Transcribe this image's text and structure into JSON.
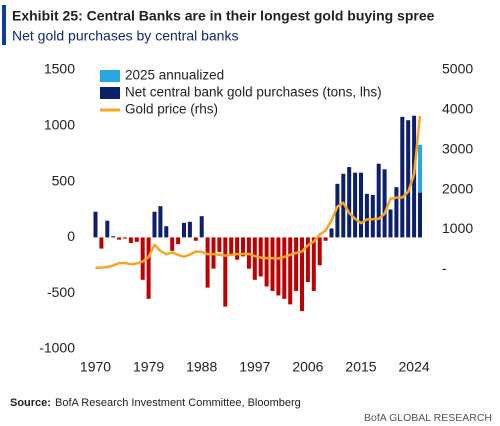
{
  "chart_data": {
    "type": "bar",
    "title": "Exhibit 25: Central Banks are in their longest gold buying spree",
    "subtitle": "Net gold purchases by central banks",
    "source_label": "Source:",
    "source": "BofA Research Investment Committee, Bloomberg",
    "footer": "BofA GLOBAL RESEARCH",
    "x": [
      1970,
      1971,
      1972,
      1973,
      1974,
      1975,
      1976,
      1977,
      1978,
      1979,
      1980,
      1981,
      1982,
      1983,
      1984,
      1985,
      1986,
      1987,
      1988,
      1989,
      1990,
      1991,
      1992,
      1993,
      1994,
      1995,
      1996,
      1997,
      1998,
      1999,
      2000,
      2001,
      2002,
      2003,
      2004,
      2005,
      2006,
      2007,
      2008,
      2009,
      2010,
      2011,
      2012,
      2013,
      2014,
      2015,
      2016,
      2017,
      2018,
      2019,
      2020,
      2021,
      2022,
      2023,
      2024,
      2025
    ],
    "xlim": [
      1969,
      2026
    ],
    "xticks": [
      1970,
      1979,
      1988,
      1997,
      2006,
      2015,
      2024
    ],
    "ylim": [
      -1000,
      1500
    ],
    "yticks": [
      -1000,
      -500,
      0,
      500,
      1000,
      1500
    ],
    "y2lim": [
      -2000,
      5000
    ],
    "y2ticks": [
      {
        "value": 0,
        "label": "-"
      },
      1000,
      2000,
      3000,
      4000,
      5000
    ],
    "legend": "upper left",
    "grid": false,
    "series": [
      {
        "name": "2025 annualized",
        "kind": "bar",
        "color": "#29a8e0",
        "values": [
          null,
          null,
          null,
          null,
          null,
          null,
          null,
          null,
          null,
          null,
          null,
          null,
          null,
          null,
          null,
          null,
          null,
          null,
          null,
          null,
          null,
          null,
          null,
          null,
          null,
          null,
          null,
          null,
          null,
          null,
          null,
          null,
          null,
          null,
          null,
          null,
          null,
          null,
          null,
          null,
          null,
          null,
          null,
          null,
          null,
          null,
          null,
          null,
          null,
          null,
          null,
          null,
          null,
          null,
          null,
          830
        ]
      },
      {
        "name": "Net central bank gold purchases (tons, lhs)",
        "kind": "bar",
        "color": "#0b1f6b",
        "negative_color": "#c00000",
        "values": [
          230,
          -100,
          150,
          10,
          -20,
          -10,
          -50,
          -40,
          -380,
          -550,
          230,
          280,
          100,
          -120,
          -60,
          130,
          140,
          -30,
          190,
          -450,
          -280,
          -130,
          -620,
          -150,
          -200,
          -170,
          -280,
          -380,
          -350,
          -440,
          -480,
          -520,
          -550,
          -600,
          -480,
          -660,
          -400,
          -480,
          -250,
          -30,
          80,
          480,
          570,
          630,
          580,
          580,
          390,
          380,
          660,
          610,
          250,
          450,
          1080,
          1050,
          1090,
          400
        ]
      },
      {
        "name": "Gold price (rhs)",
        "kind": "line",
        "axis": "y2",
        "color": "#f5a623",
        "values": [
          36,
          41,
          58,
          97,
          154,
          161,
          125,
          148,
          193,
          306,
          615,
          460,
          376,
          424,
          361,
          317,
          368,
          447,
          437,
          381,
          384,
          362,
          344,
          360,
          384,
          384,
          388,
          331,
          294,
          279,
          279,
          271,
          310,
          363,
          409,
          444,
          603,
          695,
          872,
          972,
          1225,
          1572,
          1669,
          1411,
          1266,
          1160,
          1251,
          1257,
          1268,
          1393,
          1770,
          1799,
          1800,
          1943,
          2386,
          3850
        ]
      }
    ]
  }
}
